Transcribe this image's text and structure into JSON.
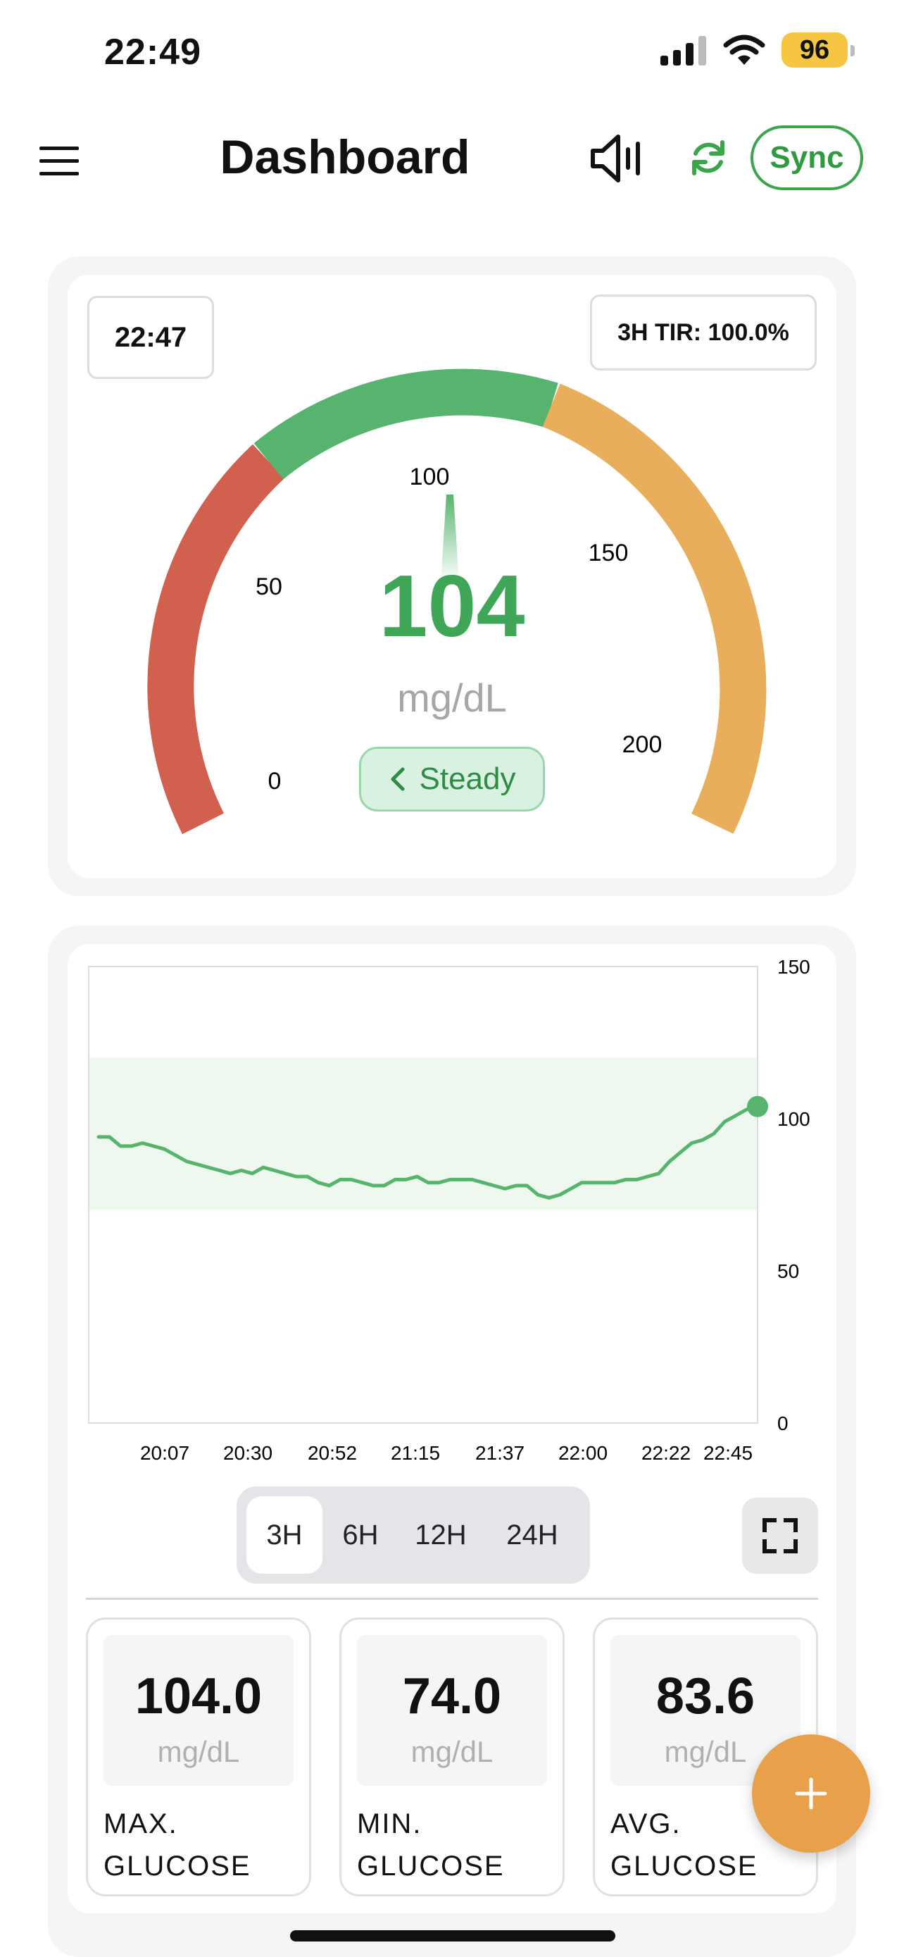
{
  "status_bar": {
    "time": "22:49",
    "battery": "96"
  },
  "header": {
    "title": "Dashboard",
    "sync_label": "Sync"
  },
  "gauge": {
    "time": "22:47",
    "tir": "3H TIR: 100.0%",
    "ticks": [
      "0",
      "50",
      "100",
      "150",
      "200"
    ],
    "value": "104",
    "unit": "mg/dL",
    "trend": "Steady",
    "colors": {
      "low": "#d2604f",
      "in_range": "#57b46e",
      "high": "#e8ae5b"
    }
  },
  "chart_data": {
    "type": "line",
    "ylim": [
      0,
      150
    ],
    "y_ticks": [
      "150",
      "100",
      "50",
      "0"
    ],
    "target_range": [
      70,
      120
    ],
    "x_tick_labels": [
      "20:07",
      "20:30",
      "20:52",
      "21:15",
      "21:37",
      "22:00",
      "22:22",
      "22:45"
    ],
    "series": [
      {
        "color": "#57b46e",
        "values": [
          94,
          94,
          91,
          91,
          92,
          91,
          90,
          88,
          86,
          85,
          84,
          83,
          82,
          83,
          82,
          84,
          83,
          82,
          81,
          81,
          79,
          78,
          80,
          80,
          79,
          78,
          78,
          80,
          80,
          81,
          79,
          79,
          80,
          80,
          80,
          79,
          78,
          77,
          78,
          78,
          75,
          74,
          75,
          77,
          79,
          79,
          79,
          79,
          80,
          80,
          81,
          82,
          86,
          89,
          92,
          93,
          95,
          99,
          101,
          103,
          104
        ]
      }
    ]
  },
  "range_tabs": {
    "options": [
      "3H",
      "6H",
      "12H",
      "24H"
    ],
    "selected": "3H"
  },
  "stats": [
    {
      "value": "104.0",
      "unit": "mg/dL",
      "label_line1": "MAX.",
      "label_line2": "GLUCOSE"
    },
    {
      "value": "74.0",
      "unit": "mg/dL",
      "label_line1": "MIN.",
      "label_line2": "GLUCOSE"
    },
    {
      "value": "83.6",
      "unit": "mg/dL",
      "label_line1": "AVG.",
      "label_line2": "GLUCOSE"
    }
  ],
  "icons": {
    "menu": "hamburger-icon",
    "speaker": "speaker-icon",
    "refresh": "refresh-icon",
    "fullscreen": "fullscreen-icon",
    "add": "plus-icon",
    "trend": "chevron-left-icon"
  }
}
